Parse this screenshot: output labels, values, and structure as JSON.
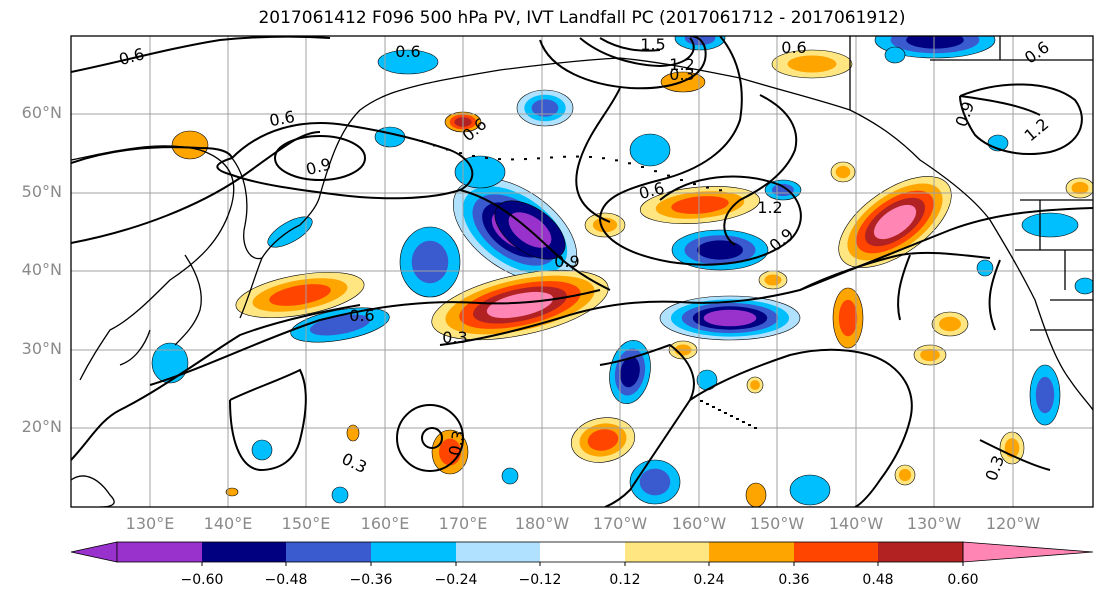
{
  "title": "2017061412 F096 500 hPa PV, IVT Landfall PC (2017061712 - 2017061912)",
  "lat_labels": [
    "60°N",
    "50°N",
    "40°N",
    "30°N",
    "20°N"
  ],
  "lon_labels": [
    "130°E",
    "140°E",
    "150°E",
    "160°E",
    "170°E",
    "180°W",
    "170°W",
    "160°W",
    "150°W",
    "140°W",
    "130°W",
    "120°W"
  ],
  "colorbar": {
    "tick_labels": [
      "−0.60",
      "−0.48",
      "−0.36",
      "−0.24",
      "−0.12",
      "0.12",
      "0.24",
      "0.36",
      "0.48",
      "0.60"
    ],
    "colors": [
      "#9932cc",
      "#000080",
      "#3a5bd0",
      "#00bfff",
      "#b0e2ff",
      "#ffffff",
      "#ffe680",
      "#ffa500",
      "#ff4500",
      "#b22222",
      "#ff85b4"
    ]
  },
  "contour_labels": [
    "0.6",
    "0.6",
    "0.6",
    "0.6",
    "0.9",
    "0.6",
    "1.5",
    "1.2",
    "0.3",
    "0.6",
    "0.9",
    "1.2",
    "0.6",
    "0.9",
    "0.6",
    "0.3",
    "0.3",
    "0.3",
    "0.9",
    "1.2",
    "0.3"
  ]
}
